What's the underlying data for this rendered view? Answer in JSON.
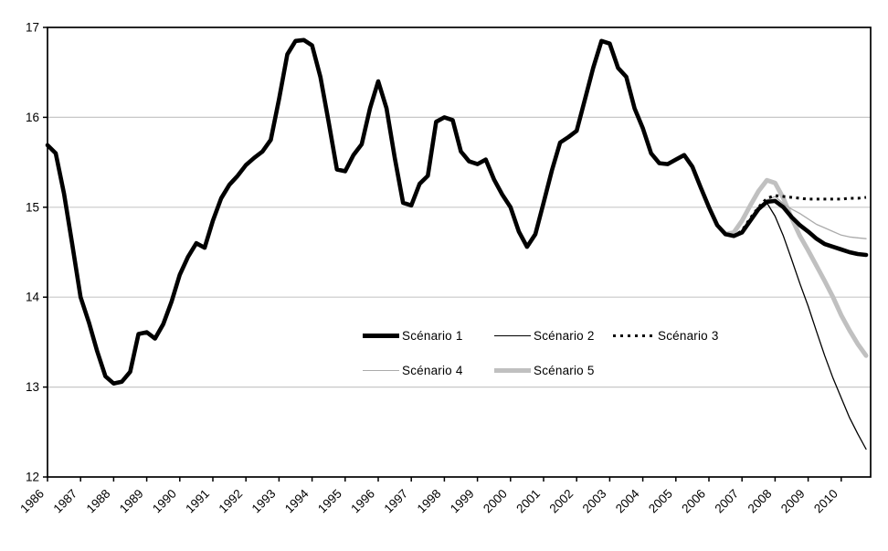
{
  "chart_data": {
    "type": "line",
    "title": "",
    "xlabel": "",
    "ylabel": "",
    "ylim": [
      12,
      17
    ],
    "xlim": [
      1986,
      2011
    ],
    "y_ticks": [
      17,
      16,
      15,
      14,
      13,
      12
    ],
    "x_ticks": [
      1986,
      1987,
      1988,
      1989,
      1990,
      1991,
      1992,
      1993,
      1994,
      1995,
      1996,
      1997,
      1998,
      1999,
      2000,
      2001,
      2002,
      2003,
      2004,
      2005,
      2006,
      2007,
      2008,
      2009,
      2010
    ],
    "grid": "horizontal-gridlines-on",
    "legend_position": "inside-lower-center-two-rows",
    "colors": {
      "background": "#ffffff",
      "axis": "#000000",
      "gridline": "#c8c8c8"
    },
    "series": [
      {
        "name": "Scénario 1",
        "color": "#000000",
        "width": 4.6,
        "dash": null,
        "start_year": 1986.0,
        "step": 0.25,
        "values": [
          15.69,
          15.6,
          15.15,
          14.58,
          14.0,
          13.72,
          13.4,
          13.12,
          13.04,
          13.06,
          13.17,
          13.59,
          13.61,
          13.54,
          13.7,
          13.95,
          14.25,
          14.45,
          14.6,
          14.55,
          14.85,
          15.1,
          15.25,
          15.35,
          15.47,
          15.55,
          15.62,
          15.75,
          16.2,
          16.7,
          16.85,
          16.86,
          16.8,
          16.45,
          15.95,
          15.42,
          15.4,
          15.58,
          15.7,
          16.1,
          16.4,
          16.1,
          15.55,
          15.05,
          15.02,
          15.26,
          15.35,
          15.95,
          16.0,
          15.97,
          15.62,
          15.51,
          15.48,
          15.53,
          15.31,
          15.14,
          15.0,
          14.73,
          14.56,
          14.7,
          15.05,
          15.41,
          15.72,
          15.78,
          15.85,
          16.2,
          16.55,
          16.85,
          16.82,
          16.55,
          16.45,
          16.1,
          15.88,
          15.6,
          15.49,
          15.48,
          15.53,
          15.58,
          15.45,
          15.22,
          15.0,
          14.8,
          14.7,
          14.68,
          14.72,
          14.85,
          14.98,
          15.06,
          15.07,
          15.0,
          14.89,
          14.8,
          14.73,
          14.65,
          14.59,
          14.56,
          14.53,
          14.5,
          14.48,
          14.47
        ]
      },
      {
        "name": "Scénario 2",
        "color": "#000000",
        "width": 1.3,
        "dash": null,
        "start_year": 2006.5,
        "step": 0.25,
        "values": [
          14.7,
          14.68,
          14.72,
          14.85,
          14.98,
          15.05,
          14.9,
          14.68,
          14.42,
          14.15,
          13.9,
          13.62,
          13.35,
          13.1,
          12.88,
          12.66,
          12.48,
          12.31
        ]
      },
      {
        "name": "Scénario 3",
        "color": "#000000",
        "width": 3,
        "dash": "3 4.5",
        "start_year": 2006.5,
        "step": 0.25,
        "values": [
          14.7,
          14.68,
          14.74,
          14.88,
          15.0,
          15.1,
          15.13,
          15.12,
          15.11,
          15.1,
          15.09,
          15.09,
          15.09,
          15.09,
          15.09,
          15.1,
          15.1,
          15.11
        ]
      },
      {
        "name": "Scénario 4",
        "color": "#ababab",
        "width": 1.3,
        "dash": null,
        "start_year": 2006.5,
        "step": 0.25,
        "values": [
          14.7,
          14.68,
          14.72,
          14.86,
          14.99,
          15.08,
          15.12,
          15.04,
          14.98,
          14.93,
          14.87,
          14.81,
          14.77,
          14.73,
          14.69,
          14.67,
          14.66,
          14.65
        ]
      },
      {
        "name": "Scénario 5",
        "color": "#c0c0c0",
        "width": 5,
        "dash": null,
        "start_year": 2006.5,
        "step": 0.25,
        "values": [
          14.7,
          14.72,
          14.85,
          15.02,
          15.18,
          15.3,
          15.27,
          15.1,
          14.88,
          14.68,
          14.52,
          14.35,
          14.18,
          14.0,
          13.8,
          13.63,
          13.48,
          13.35
        ]
      }
    ]
  }
}
